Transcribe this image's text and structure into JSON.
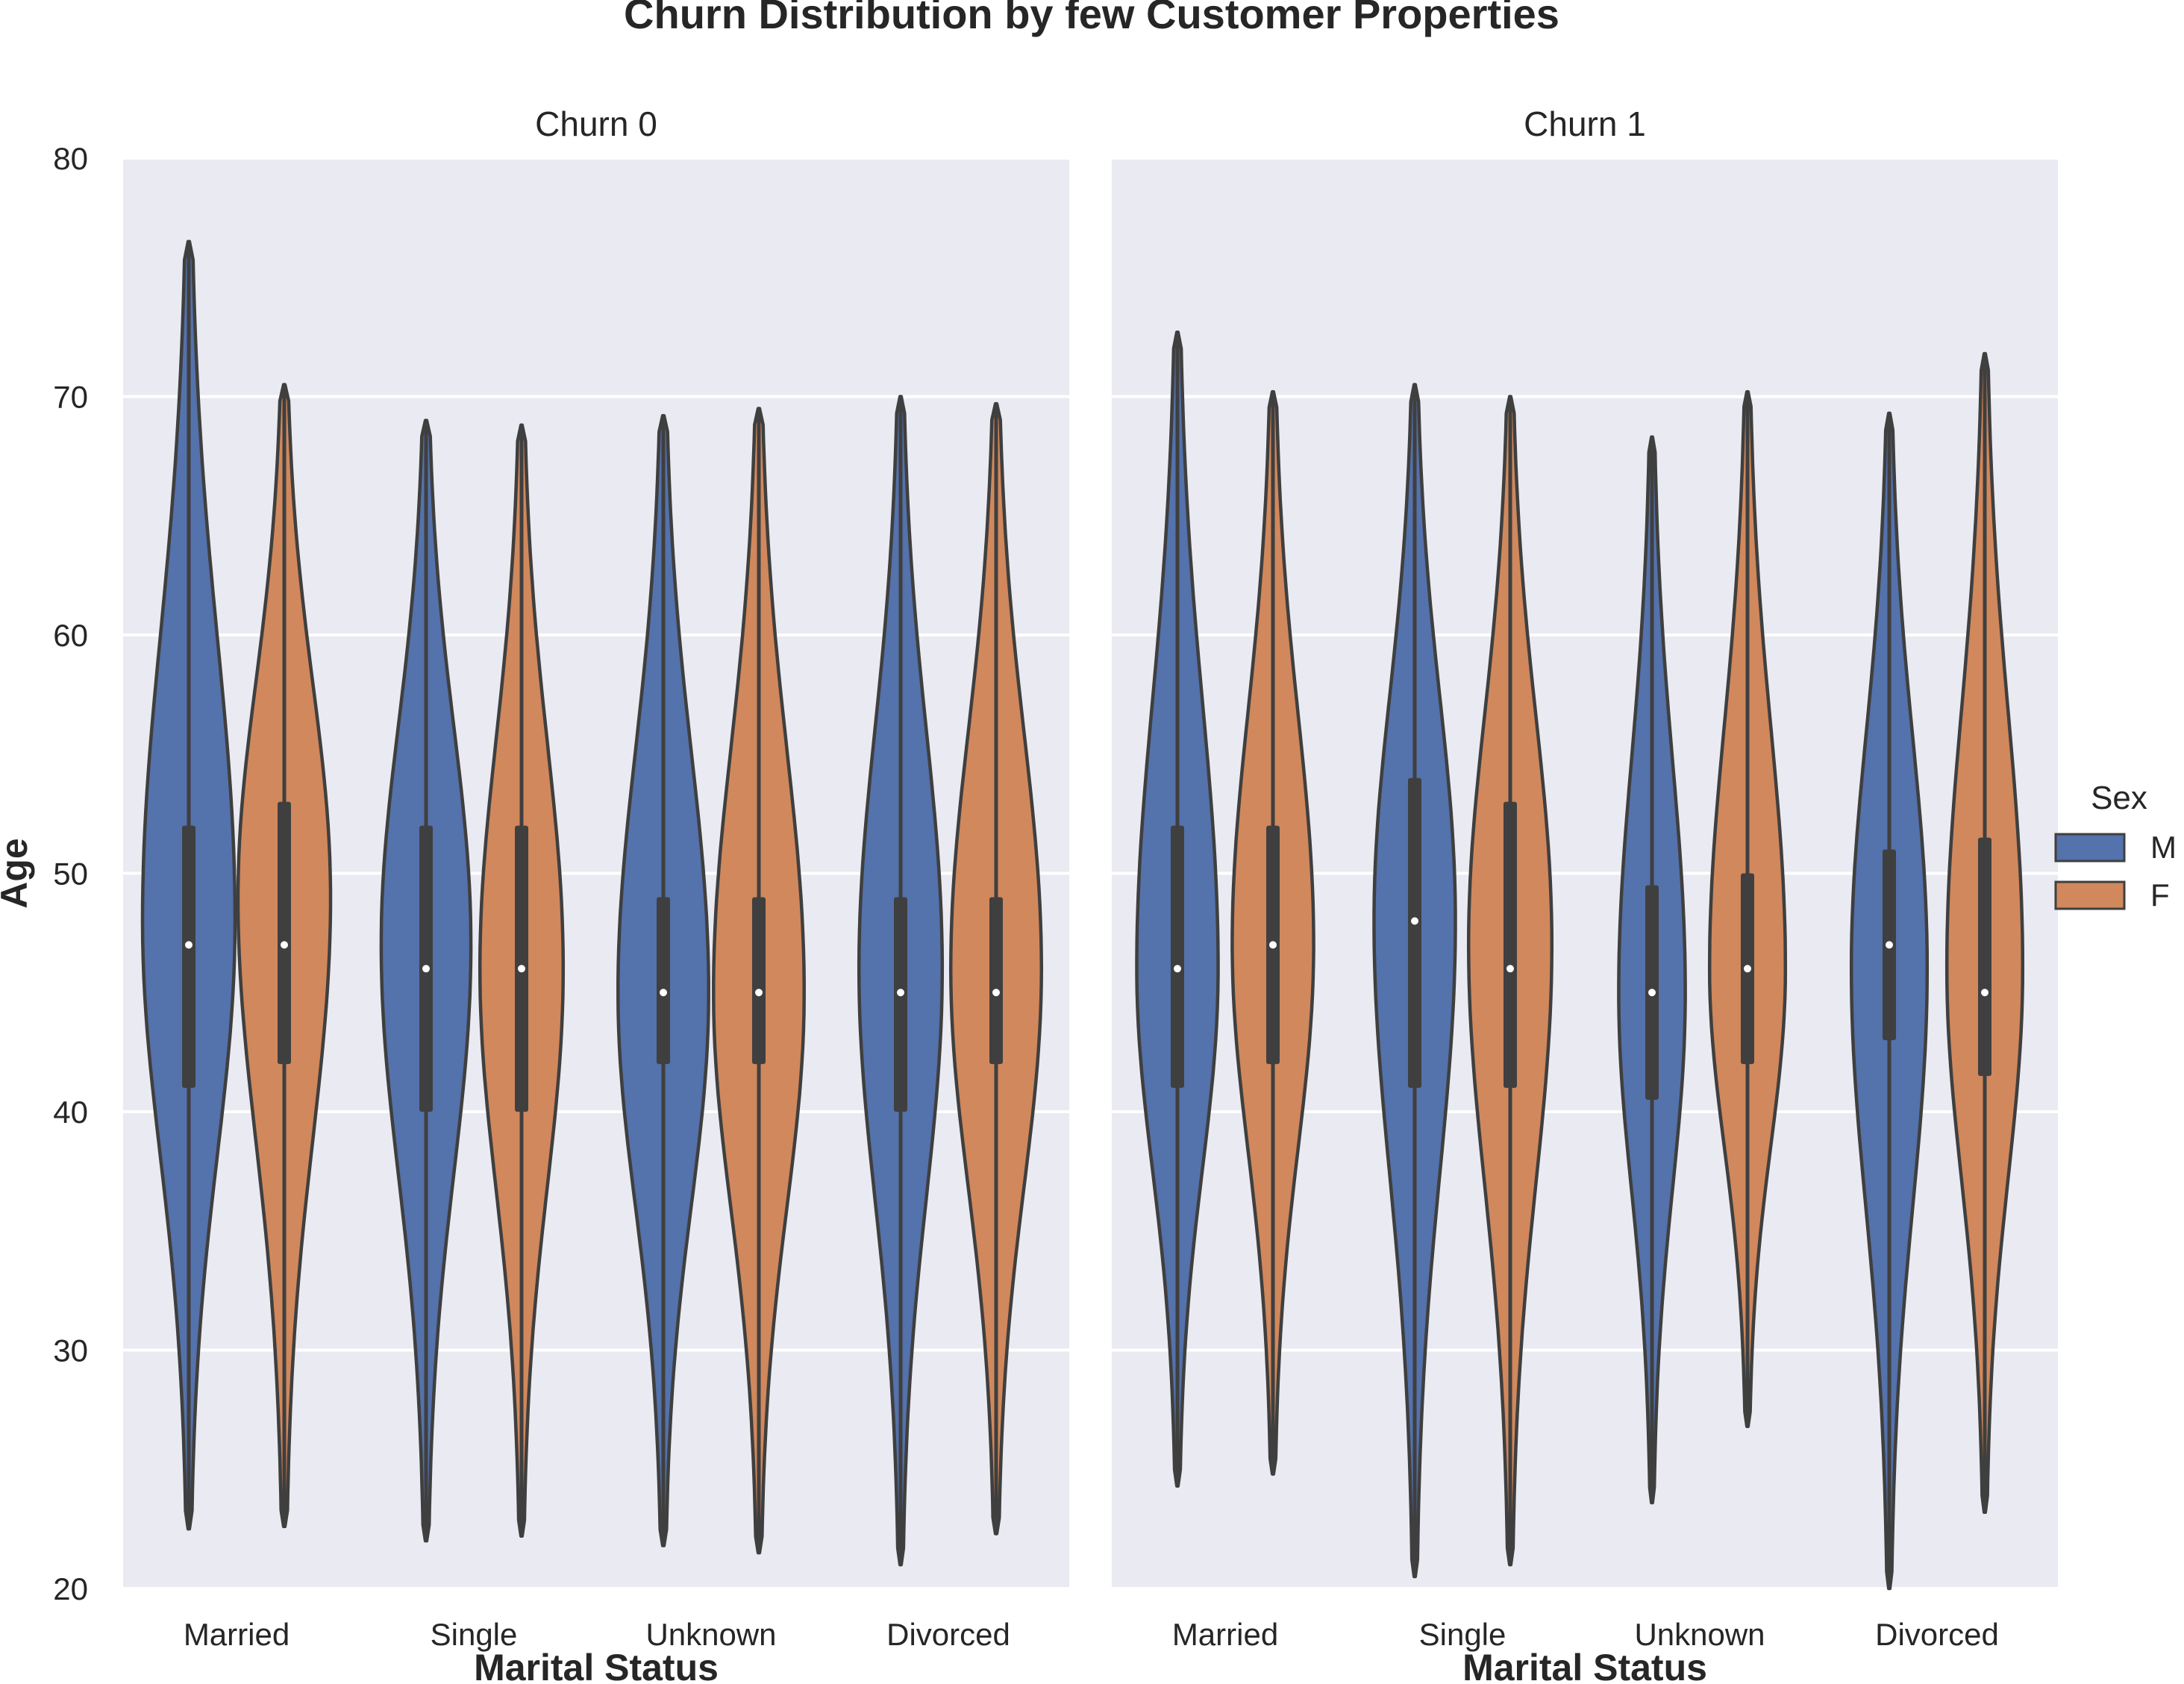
{
  "chart_data": {
    "type": "violin",
    "title": "Churn Distribution by few Customer Properties",
    "ylabel": "Age",
    "xlabel": "Marital Status",
    "ylim": [
      20,
      80
    ],
    "yticks": [
      20,
      30,
      40,
      50,
      60,
      70,
      80
    ],
    "grid": true,
    "legend": {
      "title": "Sex",
      "placement": "right",
      "entries": [
        {
          "name": "M",
          "color": "#5472ab"
        },
        {
          "name": "F",
          "color": "#d1885c"
        }
      ]
    },
    "categories": [
      "Married",
      "Single",
      "Unknown",
      "Divorced"
    ],
    "panels": [
      {
        "title": "Churn 0",
        "groups": [
          {
            "category": "Married",
            "sex": "M",
            "min": 22.5,
            "q1": 41,
            "median": 47,
            "q3": 52,
            "max": 76.5,
            "mode": 48,
            "width": 1.0
          },
          {
            "category": "Married",
            "sex": "F",
            "min": 22.6,
            "q1": 42,
            "median": 47,
            "q3": 53,
            "max": 70.5,
            "mode": 49,
            "width": 1.0
          },
          {
            "category": "Single",
            "sex": "M",
            "min": 22,
            "q1": 40,
            "median": 46,
            "q3": 52,
            "max": 69,
            "mode": 47,
            "width": 0.97
          },
          {
            "category": "Single",
            "sex": "F",
            "min": 22.2,
            "q1": 40,
            "median": 46,
            "q3": 52,
            "max": 68.8,
            "mode": 46,
            "width": 0.9
          },
          {
            "category": "Unknown",
            "sex": "M",
            "min": 21.8,
            "q1": 42,
            "median": 45,
            "q3": 49,
            "max": 69.2,
            "mode": 45,
            "width": 0.98
          },
          {
            "category": "Unknown",
            "sex": "F",
            "min": 21.5,
            "q1": 42,
            "median": 45,
            "q3": 49,
            "max": 69.5,
            "mode": 45,
            "width": 0.98
          },
          {
            "category": "Divorced",
            "sex": "M",
            "min": 21,
            "q1": 40,
            "median": 45,
            "q3": 49,
            "max": 70,
            "mode": 46,
            "width": 0.9
          },
          {
            "category": "Divorced",
            "sex": "F",
            "min": 22.3,
            "q1": 42,
            "median": 45,
            "q3": 49,
            "max": 69.7,
            "mode": 46,
            "width": 0.98
          }
        ]
      },
      {
        "title": "Churn 1",
        "groups": [
          {
            "category": "Married",
            "sex": "M",
            "min": 24.3,
            "q1": 41,
            "median": 46,
            "q3": 52,
            "max": 72.7,
            "mode": 46,
            "width": 0.88
          },
          {
            "category": "Married",
            "sex": "F",
            "min": 24.8,
            "q1": 42,
            "median": 47,
            "q3": 52,
            "max": 70.2,
            "mode": 47,
            "width": 0.88
          },
          {
            "category": "Single",
            "sex": "M",
            "min": 20.5,
            "q1": 41,
            "median": 48,
            "q3": 54,
            "max": 70.5,
            "mode": 48,
            "width": 0.88
          },
          {
            "category": "Single",
            "sex": "F",
            "min": 21,
            "q1": 41,
            "median": 46,
            "q3": 53,
            "max": 70,
            "mode": 47,
            "width": 0.9
          },
          {
            "category": "Unknown",
            "sex": "M",
            "min": 23.6,
            "q1": 40.5,
            "median": 45,
            "q3": 49.5,
            "max": 68.3,
            "mode": 45,
            "width": 0.72
          },
          {
            "category": "Unknown",
            "sex": "F",
            "min": 26.8,
            "q1": 42,
            "median": 46,
            "q3": 50,
            "max": 70.2,
            "mode": 46,
            "width": 0.82
          },
          {
            "category": "Divorced",
            "sex": "M",
            "min": 20,
            "q1": 43,
            "median": 47,
            "q3": 51,
            "max": 69.3,
            "mode": 46,
            "width": 0.82
          },
          {
            "category": "Divorced",
            "sex": "F",
            "min": 23.2,
            "q1": 41.5,
            "median": 45,
            "q3": 51.5,
            "max": 71.8,
            "mode": 46,
            "width": 0.82
          }
        ]
      }
    ]
  }
}
